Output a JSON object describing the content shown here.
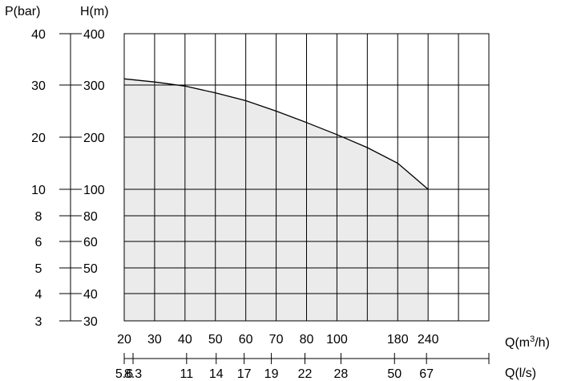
{
  "chart_data": {
    "type": "area",
    "title": "",
    "x_axis_label": "Q(m³/h)",
    "x_axis_label_base": "Q(m",
    "x_axis_label_sup": "3",
    "x_axis_label_end": "/h)",
    "x2_axis_label": "Q(l/s)",
    "y_axis_label": "H(m)",
    "y2_axis_label": "P(bar)",
    "grid": true,
    "x_ticks_m3h": [
      "20",
      "30",
      "40",
      "50",
      "60",
      "70",
      "80",
      "100",
      "180",
      "240"
    ],
    "x_ticks_ls": [
      "5.6",
      "8.3",
      "11",
      "14",
      "17",
      "19",
      "22",
      "28",
      "50",
      "67"
    ],
    "y_ticks_H": [
      "400",
      "300",
      "200",
      "100",
      "80",
      "60",
      "50",
      "40",
      "30"
    ],
    "y_ticks_P": [
      "40",
      "30",
      "20",
      "10",
      "8",
      "6",
      "5",
      "4",
      "3"
    ],
    "curve": {
      "x_m3h": [
        20,
        30,
        40,
        50,
        60,
        70,
        80,
        100,
        140,
        180,
        240
      ],
      "y_H": [
        312,
        306,
        298,
        285,
        270,
        250,
        228,
        205,
        180,
        150,
        100
      ]
    }
  }
}
